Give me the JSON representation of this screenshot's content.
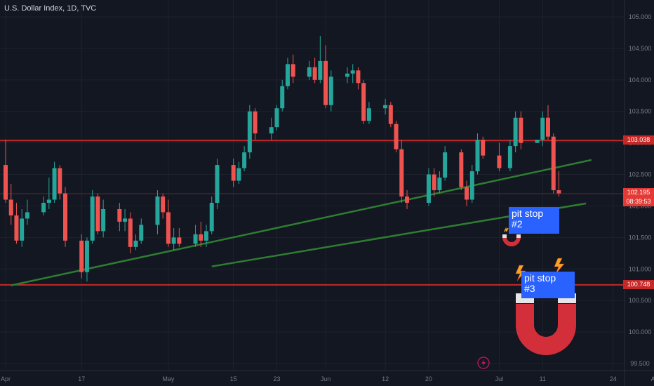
{
  "header": {
    "title": "U.S. Dollar Index, 1D, TVC"
  },
  "price_tags": {
    "level_high": "103.038",
    "last_price": "102.195",
    "countdown": "08:39:53",
    "level_low": "100.748"
  },
  "notes": {
    "pit_stop_2": {
      "line1": "pit stop",
      "line2": "#2"
    },
    "pit_stop_3": {
      "line1": "pit stop",
      "line2": "#3"
    }
  },
  "colors": {
    "background": "#131722",
    "grid": "#1e222d",
    "up": "#26a69a",
    "down": "#ef5350",
    "hline": "#c62828",
    "trend": "#2e7d32",
    "note_bg": "#2962ff",
    "axis_text": "#787b86",
    "magnet": "#d32f3b"
  },
  "icons": [
    "magnet-icon",
    "lightning-icon",
    "replay-icon"
  ],
  "chart_data": {
    "type": "candlestick",
    "title": "U.S. Dollar Index, 1D, TVC",
    "xlabel": "",
    "ylabel": "",
    "ylim": [
      99.4,
      105.3
    ],
    "grid": true,
    "x_tick_labels": [
      "Apr",
      "17",
      "May",
      "15",
      "23",
      "Jun",
      "12",
      "20",
      "Jul",
      "11",
      "24",
      "Aug"
    ],
    "y_tick_labels": [
      105.0,
      104.5,
      104.0,
      103.5,
      103.0,
      102.5,
      102.0,
      101.5,
      101.0,
      100.5,
      100.0,
      99.5
    ],
    "horizontal_levels": [
      103.038,
      100.748
    ],
    "trendlines": [
      {
        "from": [
          "Apr 04",
          100.74
        ],
        "to": [
          "Jul 20",
          102.73
        ]
      },
      {
        "from": [
          "May 11",
          101.04
        ],
        "to": [
          "Jul 19",
          102.04
        ]
      }
    ],
    "candles": [
      {
        "date": "Apr 03",
        "open": 102.65,
        "high": 103.05,
        "low": 102.05,
        "close": 102.1
      },
      {
        "date": "Apr 04",
        "open": 102.1,
        "high": 102.35,
        "low": 101.7,
        "close": 101.85
      },
      {
        "date": "Apr 05",
        "open": 101.85,
        "high": 102.05,
        "low": 101.4,
        "close": 101.45
      },
      {
        "date": "Apr 06",
        "open": 101.45,
        "high": 101.95,
        "low": 101.35,
        "close": 101.8
      },
      {
        "date": "Apr 07",
        "open": 101.8,
        "high": 102.1,
        "low": 101.7,
        "close": 101.9
      },
      {
        "date": "Apr 10",
        "open": 101.9,
        "high": 102.15,
        "low": 101.85,
        "close": 102.05
      },
      {
        "date": "Apr 11",
        "open": 102.05,
        "high": 102.45,
        "low": 101.95,
        "close": 102.1
      },
      {
        "date": "Apr 12",
        "open": 102.1,
        "high": 102.7,
        "low": 102.05,
        "close": 102.6
      },
      {
        "date": "Apr 13",
        "open": 102.6,
        "high": 102.65,
        "low": 102.1,
        "close": 102.2
      },
      {
        "date": "Apr 14",
        "open": 102.2,
        "high": 102.3,
        "low": 101.35,
        "close": 101.45
      },
      {
        "date": "Apr 17",
        "open": 101.45,
        "high": 101.55,
        "low": 100.85,
        "close": 100.95
      },
      {
        "date": "Apr 18",
        "open": 100.95,
        "high": 101.5,
        "low": 100.8,
        "close": 101.45
      },
      {
        "date": "Apr 19",
        "open": 101.45,
        "high": 102.25,
        "low": 101.4,
        "close": 102.15
      },
      {
        "date": "Apr 20",
        "open": 102.15,
        "high": 102.2,
        "low": 101.55,
        "close": 101.6
      },
      {
        "date": "Apr 21",
        "open": 101.6,
        "high": 102.1,
        "low": 101.5,
        "close": 101.95
      },
      {
        "date": "Apr 24",
        "open": 101.95,
        "high": 102.05,
        "low": 101.6,
        "close": 101.75
      },
      {
        "date": "Apr 25",
        "open": 101.75,
        "high": 101.95,
        "low": 101.6,
        "close": 101.8
      },
      {
        "date": "Apr 26",
        "open": 101.8,
        "high": 101.9,
        "low": 101.25,
        "close": 101.35
      },
      {
        "date": "Apr 27",
        "open": 101.35,
        "high": 101.55,
        "low": 101.3,
        "close": 101.45
      },
      {
        "date": "Apr 28",
        "open": 101.45,
        "high": 101.8,
        "low": 101.4,
        "close": 101.7
      },
      {
        "date": "May 01",
        "open": 101.7,
        "high": 102.25,
        "low": 101.55,
        "close": 102.15
      },
      {
        "date": "May 02",
        "open": 102.15,
        "high": 102.2,
        "low": 101.8,
        "close": 101.9
      },
      {
        "date": "May 03",
        "open": 101.9,
        "high": 102.1,
        "low": 101.35,
        "close": 101.4
      },
      {
        "date": "May 04",
        "open": 101.4,
        "high": 101.65,
        "low": 101.3,
        "close": 101.5
      },
      {
        "date": "May 05",
        "open": 101.5,
        "high": 101.65,
        "low": 101.35,
        "close": 101.4
      },
      {
        "date": "May 08",
        "open": 101.4,
        "high": 101.7,
        "low": 101.35,
        "close": 101.55
      },
      {
        "date": "May 09",
        "open": 101.55,
        "high": 101.75,
        "low": 101.35,
        "close": 101.45
      },
      {
        "date": "May 10",
        "open": 101.45,
        "high": 101.7,
        "low": 101.35,
        "close": 101.6
      },
      {
        "date": "May 11",
        "open": 101.6,
        "high": 102.15,
        "low": 101.55,
        "close": 102.05
      },
      {
        "date": "May 12",
        "open": 102.05,
        "high": 102.75,
        "low": 101.95,
        "close": 102.65
      },
      {
        "date": "May 15",
        "open": 102.65,
        "high": 102.75,
        "low": 102.3,
        "close": 102.4
      },
      {
        "date": "May 16",
        "open": 102.4,
        "high": 102.7,
        "low": 102.35,
        "close": 102.6
      },
      {
        "date": "May 17",
        "open": 102.6,
        "high": 102.95,
        "low": 102.55,
        "close": 102.85
      },
      {
        "date": "May 18",
        "open": 102.85,
        "high": 103.6,
        "low": 102.75,
        "close": 103.5
      },
      {
        "date": "May 19",
        "open": 103.5,
        "high": 103.55,
        "low": 103.05,
        "close": 103.15
      },
      {
        "date": "May 22",
        "open": 103.15,
        "high": 103.4,
        "low": 103.05,
        "close": 103.25
      },
      {
        "date": "May 23",
        "open": 103.25,
        "high": 103.6,
        "low": 103.2,
        "close": 103.55
      },
      {
        "date": "May 24",
        "open": 103.55,
        "high": 104.0,
        "low": 103.5,
        "close": 103.9
      },
      {
        "date": "May 25",
        "open": 103.9,
        "high": 104.35,
        "low": 103.85,
        "close": 104.25
      },
      {
        "date": "May 26",
        "open": 104.25,
        "high": 104.4,
        "low": 103.95,
        "close": 104.05
      },
      {
        "date": "May 29",
        "open": 104.05,
        "high": 104.3,
        "low": 104.0,
        "close": 104.2
      },
      {
        "date": "May 30",
        "open": 104.2,
        "high": 104.35,
        "low": 103.95,
        "close": 104.0
      },
      {
        "date": "May 31",
        "open": 104.0,
        "high": 104.7,
        "low": 103.95,
        "close": 104.3
      },
      {
        "date": "Jun 01",
        "open": 104.3,
        "high": 104.55,
        "low": 103.55,
        "close": 103.6
      },
      {
        "date": "Jun 02",
        "open": 103.6,
        "high": 104.15,
        "low": 103.5,
        "close": 104.05
      },
      {
        "date": "Jun 05",
        "open": 104.05,
        "high": 104.2,
        "low": 103.95,
        "close": 104.1
      },
      {
        "date": "Jun 06",
        "open": 104.1,
        "high": 104.25,
        "low": 103.95,
        "close": 104.15
      },
      {
        "date": "Jun 07",
        "open": 104.15,
        "high": 104.2,
        "low": 103.85,
        "close": 103.95
      },
      {
        "date": "Jun 08",
        "open": 103.95,
        "high": 104.0,
        "low": 103.3,
        "close": 103.35
      },
      {
        "date": "Jun 09",
        "open": 103.35,
        "high": 103.65,
        "low": 103.3,
        "close": 103.55
      },
      {
        "date": "Jun 12",
        "open": 103.55,
        "high": 103.7,
        "low": 103.45,
        "close": 103.6
      },
      {
        "date": "Jun 13",
        "open": 103.6,
        "high": 103.65,
        "low": 103.25,
        "close": 103.3
      },
      {
        "date": "Jun 14",
        "open": 103.3,
        "high": 103.35,
        "low": 102.85,
        "close": 102.9
      },
      {
        "date": "Jun 15",
        "open": 102.9,
        "high": 103.05,
        "low": 102.05,
        "close": 102.15
      },
      {
        "date": "Jun 16",
        "open": 102.15,
        "high": 102.25,
        "low": 101.95,
        "close": 102.05
      },
      {
        "date": "Jun 20",
        "open": 102.05,
        "high": 102.6,
        "low": 102.0,
        "close": 102.5
      },
      {
        "date": "Jun 21",
        "open": 102.5,
        "high": 102.6,
        "low": 102.15,
        "close": 102.25
      },
      {
        "date": "Jun 22",
        "open": 102.25,
        "high": 102.55,
        "low": 102.2,
        "close": 102.45
      },
      {
        "date": "Jun 23",
        "open": 102.45,
        "high": 102.95,
        "low": 102.4,
        "close": 102.85
      },
      {
        "date": "Jun 26",
        "open": 102.85,
        "high": 102.9,
        "low": 102.25,
        "close": 102.3
      },
      {
        "date": "Jun 27",
        "open": 102.3,
        "high": 102.4,
        "low": 102.0,
        "close": 102.1
      },
      {
        "date": "Jun 28",
        "open": 102.1,
        "high": 102.65,
        "low": 102.05,
        "close": 102.55
      },
      {
        "date": "Jun 29",
        "open": 102.55,
        "high": 103.15,
        "low": 102.5,
        "close": 103.05
      },
      {
        "date": "Jun 30",
        "open": 103.05,
        "high": 103.1,
        "low": 102.75,
        "close": 102.8
      },
      {
        "date": "Jul 03",
        "open": 102.8,
        "high": 103.0,
        "low": 102.55,
        "close": 102.6
      },
      {
        "date": "Jul 05",
        "open": 102.6,
        "high": 103.05,
        "low": 102.55,
        "close": 102.95
      },
      {
        "date": "Jul 06",
        "open": 102.95,
        "high": 103.5,
        "low": 102.85,
        "close": 103.4
      },
      {
        "date": "Jul 07",
        "open": 103.4,
        "high": 103.5,
        "low": 102.9,
        "close": 103.0
      },
      {
        "date": "Jul 10",
        "open": 103.0,
        "high": 103.05,
        "low": 103.0,
        "close": 103.05
      },
      {
        "date": "Jul 11",
        "open": 103.05,
        "high": 103.5,
        "low": 102.95,
        "close": 103.4
      },
      {
        "date": "Jul 12",
        "open": 103.4,
        "high": 103.6,
        "low": 103.05,
        "close": 103.1
      },
      {
        "date": "Jul 13",
        "open": 103.1,
        "high": 103.15,
        "low": 102.2,
        "close": 102.25
      },
      {
        "date": "Jul 14",
        "open": 102.25,
        "high": 102.55,
        "low": 102.15,
        "close": 102.2
      }
    ]
  }
}
